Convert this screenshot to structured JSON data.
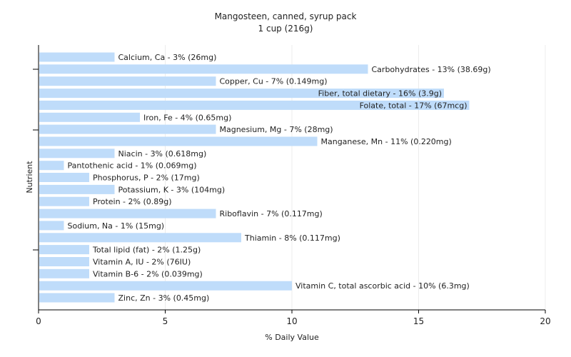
{
  "chart_data": {
    "type": "bar",
    "orientation": "horizontal",
    "title": "Mangosteen, canned, syrup pack",
    "subtitle": "1 cup (216g)",
    "xlabel": "% Daily Value",
    "ylabel": "Nutrient",
    "xlim": [
      0,
      20
    ],
    "xticks": [
      "0",
      "5",
      "10",
      "15",
      "20"
    ],
    "grid": true,
    "bar_color": "#bfdcfa",
    "categories": [
      "Calcium, Ca",
      "Carbohydrates",
      "Copper, Cu",
      "Fiber, total dietary",
      "Folate, total",
      "Iron, Fe",
      "Magnesium, Mg",
      "Manganese, Mn",
      "Niacin",
      "Pantothenic acid",
      "Phosphorus, P",
      "Potassium, K",
      "Protein",
      "Riboflavin",
      "Sodium, Na",
      "Thiamin",
      "Total lipid (fat)",
      "Vitamin A, IU",
      "Vitamin B-6",
      "Vitamin C, total ascorbic acid",
      "Zinc, Zn"
    ],
    "values": [
      3,
      13,
      7,
      16,
      17,
      4,
      7,
      11,
      3,
      1,
      2,
      3,
      2,
      7,
      1,
      8,
      2,
      2,
      2,
      10,
      3
    ],
    "labels": [
      "Calcium, Ca - 3% (26mg)",
      "Carbohydrates - 13% (38.69g)",
      "Copper, Cu - 7% (0.149mg)",
      "Fiber, total dietary - 16% (3.9g)",
      "Folate, total - 17% (67mcg)",
      "Iron, Fe - 4% (0.65mg)",
      "Magnesium, Mg - 7% (28mg)",
      "Manganese, Mn - 11% (0.220mg)",
      "Niacin - 3% (0.618mg)",
      "Pantothenic acid - 1% (0.069mg)",
      "Phosphorus, P - 2% (17mg)",
      "Potassium, K - 3% (104mg)",
      "Protein - 2% (0.89g)",
      "Riboflavin - 7% (0.117mg)",
      "Sodium, Na - 1% (15mg)",
      "Thiamin - 8% (0.117mg)",
      "Total lipid (fat) - 2% (1.25g)",
      "Vitamin A, IU - 2% (76IU)",
      "Vitamin B-6 - 2% (0.039mg)",
      "Vitamin C, total ascorbic acid - 10% (6.3mg)",
      "Zinc, Zn - 3% (0.45mg)"
    ],
    "inside_labels": [
      "Fiber, total dietary - 16% (3.9g)",
      "Folate, total - 17% (67mcg)"
    ]
  }
}
